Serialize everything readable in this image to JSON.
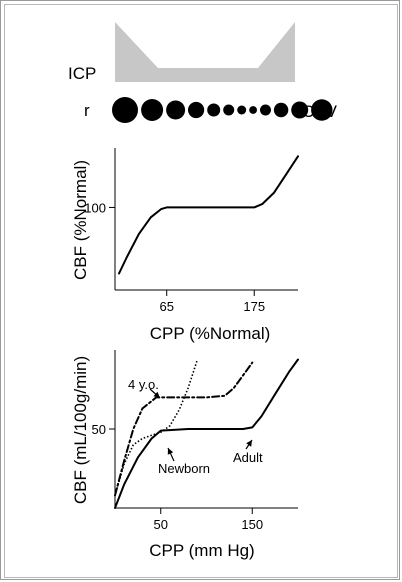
{
  "top_panel": {
    "icp_label": "ICP",
    "r_label": "r",
    "cbv_label": "CBV",
    "vessel_radii_relative": [
      1.0,
      0.85,
      0.73,
      0.62,
      0.5,
      0.42,
      0.35,
      0.3,
      0.42,
      0.55,
      0.65,
      0.82
    ]
  },
  "chart_data": [
    {
      "type": "line",
      "title": "",
      "xlabel": "CPP (%Normal)",
      "ylabel": "CBF (%Normal)",
      "xticks": [
        65,
        175
      ],
      "yticks": [
        100
      ],
      "series": [
        {
          "x": [
            5,
            15,
            30,
            45,
            58,
            65,
            100,
            140,
            175,
            185,
            200,
            215,
            230
          ],
          "y": [
            20,
            40,
            68,
            88,
            98,
            100,
            100,
            100,
            100,
            104,
            118,
            140,
            162
          ]
        }
      ]
    },
    {
      "type": "line",
      "title": "",
      "xlabel": "CPP (mm Hg)",
      "ylabel": "CBF (mL/100g/min)",
      "xticks": [
        50,
        150
      ],
      "yticks": [
        50
      ],
      "series": [
        {
          "name": "4 y.o.",
          "style": "dashdot",
          "x": [
            0,
            10,
            20,
            30,
            45,
            60,
            80,
            100,
            120,
            130,
            140,
            150
          ],
          "y": [
            8,
            30,
            50,
            63,
            70,
            70,
            70,
            70,
            71,
            76,
            84,
            92
          ]
        },
        {
          "name": "Newborn",
          "style": "dotted",
          "x": [
            0,
            10,
            20,
            30,
            40,
            50,
            60,
            70,
            80,
            90
          ],
          "y": [
            8,
            28,
            40,
            44,
            46,
            48,
            52,
            62,
            76,
            94
          ]
        },
        {
          "name": "Adult",
          "style": "solid",
          "x": [
            0,
            10,
            25,
            40,
            50,
            80,
            110,
            140,
            150,
            160,
            175,
            190,
            200
          ],
          "y": [
            0,
            15,
            32,
            44,
            49,
            50,
            50,
            50,
            51,
            58,
            72,
            86,
            94
          ]
        }
      ]
    }
  ]
}
